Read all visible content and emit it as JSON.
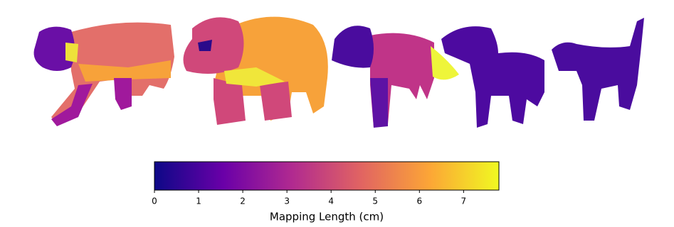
{
  "chart_data": {
    "type": "colorbar",
    "xlabel": "Mapping Length (cm)",
    "xlim": [
      0,
      7.8
    ],
    "xticks": [
      0,
      1,
      2,
      3,
      4,
      5,
      6,
      7
    ],
    "colors": [
      "#0d0887",
      "#6a00a8",
      "#b12a90",
      "#e16462",
      "#fca636",
      "#f0f921"
    ]
  }
}
